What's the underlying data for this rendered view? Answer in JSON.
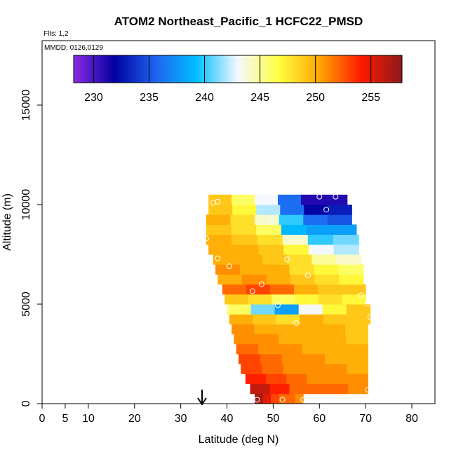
{
  "chart_data": {
    "type": "curtain",
    "title": "ATOM2 Northeast_Pacific_1 HCFC22_PMSD",
    "flights_label": "Flts: 1,2",
    "dates_label": "MMDD: 0126,0129",
    "x_label": "Latitude (deg N)",
    "y_label": "Altitude (m)",
    "xlim": [
      0,
      85
    ],
    "xticks": [
      0,
      5,
      10,
      20,
      30,
      40,
      50,
      60,
      70,
      80
    ],
    "ylim": [
      0,
      18240
    ],
    "yticks": [
      0,
      5000,
      10000,
      15000
    ],
    "clim": [
      228.2,
      257.8
    ],
    "cticks": [
      230,
      235,
      240,
      245,
      250,
      255
    ],
    "colormap": [
      "#8a2be2",
      "#0000a0",
      "#1e64f0",
      "#00bfff",
      "#f5f8ff",
      "#ffff40",
      "#ffa500",
      "#ff1a00",
      "#8b1a1a"
    ],
    "altitude_bins": [
      0,
      500,
      1000,
      1500,
      2000,
      2500,
      3000,
      3500,
      4000,
      4500,
      5000,
      5500,
      6000,
      6500,
      7000,
      7500,
      8000,
      8500,
      9000,
      9500,
      10000,
      10500
    ],
    "lat_start": [
      46,
      45,
      44,
      43,
      42.5,
      42,
      41.5,
      41,
      40.5,
      40,
      39.5,
      39,
      38,
      37.5,
      37,
      36,
      35.5,
      35.5,
      35.5,
      36,
      36
    ],
    "lat_end": [
      56.5,
      70.5,
      70.5,
      70.5,
      70.5,
      70.5,
      70.5,
      70.5,
      71,
      71,
      70,
      70,
      69.5,
      69.5,
      69,
      68.5,
      68.5,
      68,
      67,
      67,
      66
    ],
    "values": [
      [
        257,
        255,
        253,
        252,
        252,
        251
      ],
      [
        256,
        254,
        252,
        252,
        252,
        251
      ],
      [
        254,
        253,
        252,
        251,
        251,
        251
      ],
      [
        253,
        252,
        251,
        251,
        251,
        250
      ],
      [
        253,
        252,
        251,
        251,
        250,
        250
      ],
      [
        252,
        251,
        251,
        250,
        250,
        250
      ],
      [
        251,
        251,
        250,
        250,
        250,
        249
      ],
      [
        251,
        250,
        250,
        250,
        250,
        249
      ],
      [
        250,
        249,
        248,
        250,
        249,
        249
      ],
      [
        246,
        241,
        238,
        243,
        247,
        249
      ],
      [
        249,
        248,
        246,
        247,
        248,
        247
      ],
      [
        252,
        253,
        252,
        250,
        249,
        249
      ],
      [
        250,
        251,
        250,
        249,
        248,
        247
      ],
      [
        251,
        250,
        250,
        248,
        247,
        246
      ],
      [
        250,
        250,
        249,
        248,
        245,
        244
      ],
      [
        250,
        250,
        249,
        247,
        243,
        242
      ],
      [
        250,
        249,
        248,
        244,
        240,
        241
      ],
      [
        249,
        248,
        246,
        239,
        238,
        238
      ],
      [
        250,
        248,
        244,
        240,
        236,
        235
      ],
      [
        249,
        247,
        242,
        236,
        232,
        233
      ],
      [
        249,
        246,
        243,
        236,
        231,
        231
      ]
    ],
    "samples": {
      "x": [
        60,
        63.5,
        61.5,
        49.5,
        37,
        38,
        35.5,
        38,
        40.5,
        53,
        57.5,
        45.5,
        47.5,
        69,
        70.5,
        51,
        40,
        55,
        71,
        70.5,
        46.5,
        52,
        56.5
      ],
      "y": [
        10400,
        10400,
        9750,
        9150,
        10100,
        10150,
        8300,
        7300,
        6900,
        7250,
        6450,
        5650,
        6000,
        5450,
        5050,
        4950,
        4850,
        4050,
        4350,
        700,
        200,
        200,
        200
      ]
    }
  }
}
